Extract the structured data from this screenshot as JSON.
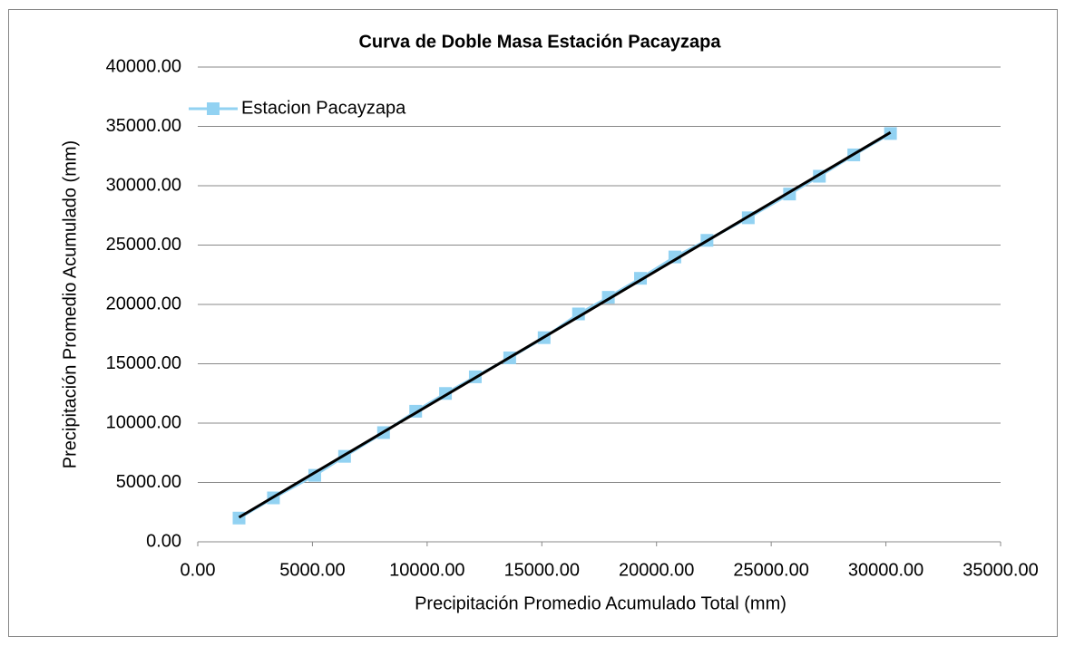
{
  "chart_data": {
    "type": "scatter",
    "title": "Curva de Doble Masa Estación Pacayzapa",
    "xlabel": "Precipitación Promedio Acumulado Total (mm)",
    "ylabel": "Precipitación Promedio Acumulado (mm)",
    "series": [
      {
        "name": "Estacion Pacayzapa",
        "color": "#92d2f2",
        "x": [
          1800,
          3300,
          5100,
          6400,
          8100,
          9500,
          10800,
          12100,
          13600,
          15100,
          16600,
          17900,
          19300,
          20800,
          22200,
          24000,
          25800,
          27100,
          28600,
          30200
        ],
        "values": [
          2000,
          3700,
          5600,
          7200,
          9200,
          11000,
          12500,
          13900,
          15500,
          17200,
          19200,
          20600,
          22200,
          24000,
          25400,
          27300,
          29300,
          30800,
          32600,
          34400
        ]
      }
    ],
    "trendline": {
      "type": "linear",
      "color": "#000000"
    },
    "xlim": [
      0,
      35000
    ],
    "xticks": [
      {
        "value": 0,
        "label": "0.00"
      },
      {
        "value": 5000,
        "label": "5000.00"
      },
      {
        "value": 10000,
        "label": "10000.00"
      },
      {
        "value": 15000,
        "label": "15000.00"
      },
      {
        "value": 20000,
        "label": "20000.00"
      },
      {
        "value": 25000,
        "label": "25000.00"
      },
      {
        "value": 30000,
        "label": "30000.00"
      },
      {
        "value": 35000,
        "label": "35000.00"
      }
    ],
    "ylim": [
      0,
      40000
    ],
    "yticks": [
      {
        "value": 0,
        "label": "0.00"
      },
      {
        "value": 5000,
        "label": "5000.00"
      },
      {
        "value": 10000,
        "label": "10000.00"
      },
      {
        "value": 15000,
        "label": "15000.00"
      },
      {
        "value": 20000,
        "label": "20000.00"
      },
      {
        "value": 25000,
        "label": "25000.00"
      },
      {
        "value": 30000,
        "label": "30000.00"
      },
      {
        "value": 35000,
        "label": "35000.00"
      },
      {
        "value": 40000,
        "label": "40000.00"
      }
    ],
    "grid": true,
    "legend": "top-left"
  }
}
